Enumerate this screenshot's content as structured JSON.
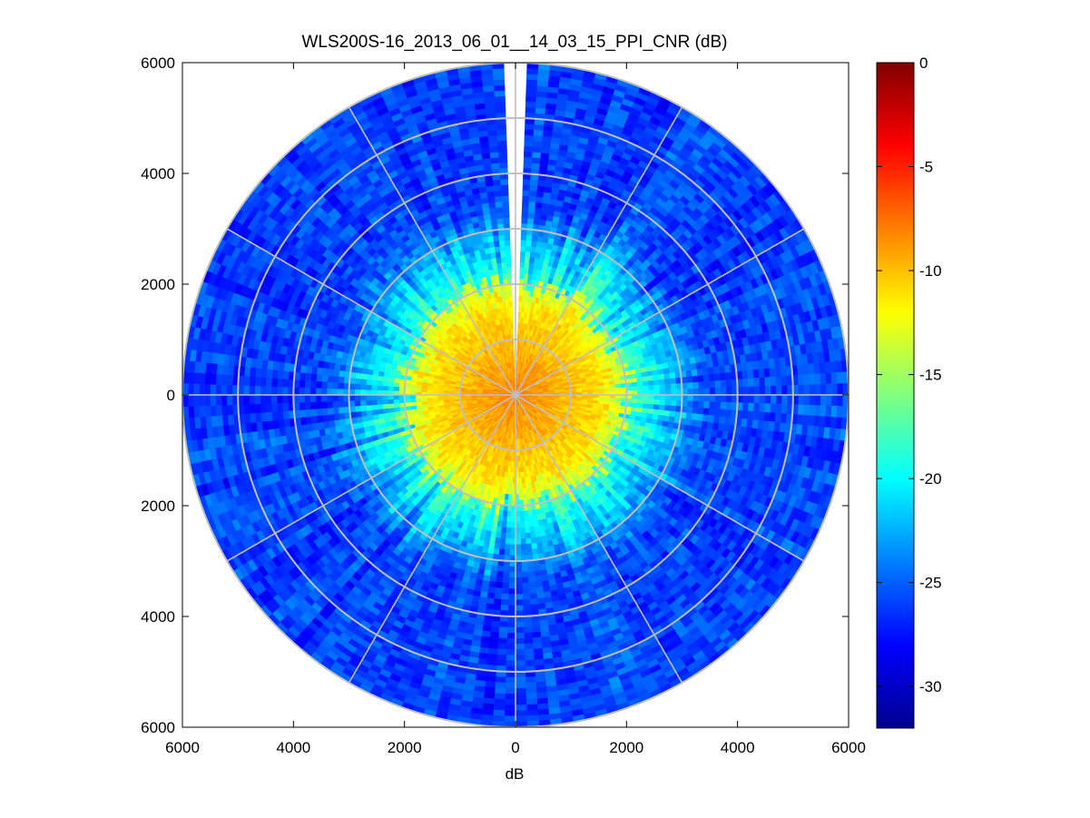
{
  "chart_data": {
    "type": "heatmap",
    "title": "WLS200S-16_2013_06_01__14_03_15_PPI_CNR (dB)",
    "xlabel": "dB",
    "ylabel": "",
    "xlim": [
      -6000,
      6000
    ],
    "ylim": [
      -6000,
      6000
    ],
    "x_ticks": [
      "6000",
      "4000",
      "2000",
      "0",
      "2000",
      "4000",
      "6000"
    ],
    "x_tick_values": [
      -6000,
      -4000,
      -2000,
      0,
      2000,
      4000,
      6000
    ],
    "y_ticks": [
      "6000",
      "4000",
      "2000",
      "0",
      "2000",
      "4000",
      "6000"
    ],
    "y_tick_values": [
      6000,
      4000,
      2000,
      0,
      -2000,
      -4000,
      -6000
    ],
    "grid": true,
    "polar_grid": {
      "range_rings": [
        1000,
        2000,
        3000,
        4000,
        5000,
        6000
      ],
      "spoke_angles_deg": [
        0,
        30,
        60,
        90,
        120,
        150,
        180,
        210,
        240,
        270,
        300,
        330
      ],
      "max_range": 6000
    },
    "colorbar": {
      "colormap": "jet",
      "range": [
        -32,
        0
      ],
      "tick_labels": [
        "0",
        "-5",
        "-10",
        "-15",
        "-20",
        "-25",
        "-30"
      ],
      "tick_values": [
        0,
        -5,
        -10,
        -15,
        -20,
        -25,
        -30
      ],
      "location": "right"
    },
    "field_summary": {
      "near_range_cnr_db": -8,
      "near_range_extent": 2000,
      "far_range_cnr_db": -26,
      "missing_sector_azimuth_deg": 0
    }
  }
}
